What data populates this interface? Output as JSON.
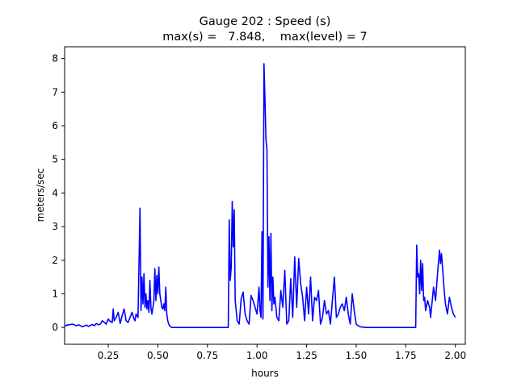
{
  "chart_data": {
    "type": "line",
    "title": "Gauge 202 : Speed (s)",
    "subtitle": "max(s) =   7.848,    max(level) = 7",
    "xlabel": "hours",
    "ylabel": "meters/sec",
    "xlim": [
      0.03,
      2.05
    ],
    "ylim": [
      -0.5,
      8.35
    ],
    "xticks": [
      0.25,
      0.5,
      0.75,
      1.0,
      1.25,
      1.5,
      1.75,
      2.0
    ],
    "xtick_labels": [
      "0.25",
      "0.50",
      "0.75",
      "1.00",
      "1.25",
      "1.50",
      "1.75",
      "2.00"
    ],
    "yticks": [
      0,
      1,
      2,
      3,
      4,
      5,
      6,
      7,
      8
    ],
    "ytick_labels": [
      "0",
      "1",
      "2",
      "3",
      "4",
      "5",
      "6",
      "7",
      "8"
    ],
    "grid": false,
    "series": [
      {
        "color": "#0000ff",
        "x": [
          0.03,
          0.05,
          0.07,
          0.09,
          0.1,
          0.12,
          0.14,
          0.15,
          0.17,
          0.18,
          0.19,
          0.2,
          0.21,
          0.22,
          0.23,
          0.24,
          0.25,
          0.26,
          0.27,
          0.275,
          0.28,
          0.29,
          0.3,
          0.31,
          0.32,
          0.33,
          0.34,
          0.35,
          0.36,
          0.37,
          0.38,
          0.385,
          0.39,
          0.4,
          0.41,
          0.415,
          0.42,
          0.425,
          0.43,
          0.435,
          0.44,
          0.445,
          0.45,
          0.455,
          0.46,
          0.465,
          0.47,
          0.475,
          0.48,
          0.485,
          0.49,
          0.495,
          0.5,
          0.505,
          0.51,
          0.515,
          0.52,
          0.525,
          0.53,
          0.535,
          0.54,
          0.545,
          0.55,
          0.555,
          0.56,
          0.565,
          0.57,
          0.58,
          0.59,
          0.6,
          0.65,
          0.7,
          0.75,
          0.8,
          0.855,
          0.86,
          0.865,
          0.87,
          0.875,
          0.88,
          0.885,
          0.89,
          0.9,
          0.91,
          0.92,
          0.93,
          0.94,
          0.95,
          0.96,
          0.97,
          0.98,
          0.99,
          1.0,
          1.01,
          1.015,
          1.02,
          1.025,
          1.03,
          1.035,
          1.04,
          1.045,
          1.05,
          1.055,
          1.06,
          1.065,
          1.07,
          1.075,
          1.08,
          1.085,
          1.09,
          1.1,
          1.11,
          1.12,
          1.13,
          1.14,
          1.15,
          1.16,
          1.17,
          1.18,
          1.19,
          1.2,
          1.21,
          1.22,
          1.23,
          1.24,
          1.25,
          1.26,
          1.27,
          1.28,
          1.29,
          1.3,
          1.31,
          1.32,
          1.33,
          1.34,
          1.35,
          1.36,
          1.37,
          1.38,
          1.39,
          1.4,
          1.41,
          1.42,
          1.43,
          1.44,
          1.45,
          1.46,
          1.47,
          1.48,
          1.49,
          1.5,
          1.51,
          1.52,
          1.55,
          1.6,
          1.65,
          1.7,
          1.75,
          1.8,
          1.805,
          1.81,
          1.815,
          1.82,
          1.825,
          1.83,
          1.835,
          1.84,
          1.845,
          1.85,
          1.86,
          1.87,
          1.875,
          1.88,
          1.89,
          1.9,
          1.91,
          1.92,
          1.925,
          1.93,
          1.935,
          1.94,
          1.945,
          1.95,
          1.96,
          1.97,
          1.98,
          1.99,
          2.0
        ],
        "y": [
          0.05,
          0.08,
          0.1,
          0.05,
          0.08,
          0.02,
          0.07,
          0.03,
          0.09,
          0.05,
          0.12,
          0.08,
          0.1,
          0.2,
          0.15,
          0.1,
          0.25,
          0.18,
          0.15,
          0.55,
          0.2,
          0.3,
          0.45,
          0.12,
          0.35,
          0.55,
          0.2,
          0.15,
          0.3,
          0.45,
          0.25,
          0.2,
          0.4,
          0.3,
          3.55,
          0.5,
          1.5,
          0.7,
          1.6,
          0.6,
          1.0,
          0.55,
          0.8,
          0.45,
          1.4,
          0.6,
          0.4,
          0.6,
          0.8,
          1.75,
          0.8,
          1.55,
          1.0,
          1.8,
          1.0,
          0.8,
          0.6,
          0.55,
          0.7,
          0.5,
          1.2,
          0.4,
          0.2,
          0.1,
          0.05,
          0.02,
          0.0,
          0.0,
          0.0,
          0.0,
          0.0,
          0.0,
          0.0,
          0.0,
          0.0,
          3.2,
          1.4,
          1.8,
          3.75,
          2.4,
          3.5,
          0.8,
          0.2,
          0.1,
          0.85,
          1.05,
          0.4,
          0.2,
          0.1,
          0.95,
          0.8,
          0.6,
          0.4,
          1.2,
          0.5,
          0.3,
          2.85,
          0.25,
          7.848,
          6.8,
          5.6,
          5.3,
          1.2,
          2.7,
          0.8,
          2.8,
          0.5,
          1.5,
          0.7,
          0.9,
          0.3,
          0.2,
          1.1,
          0.6,
          1.7,
          0.1,
          0.2,
          1.45,
          0.3,
          2.1,
          0.6,
          2.05,
          1.3,
          0.9,
          0.2,
          1.2,
          0.4,
          1.5,
          0.2,
          0.9,
          0.8,
          1.1,
          0.1,
          0.3,
          0.8,
          0.4,
          0.5,
          0.1,
          0.8,
          1.5,
          0.3,
          0.4,
          0.6,
          0.7,
          0.5,
          0.9,
          0.4,
          0.1,
          1.0,
          0.5,
          0.1,
          0.05,
          0.02,
          0.0,
          0.0,
          0.0,
          0.0,
          0.0,
          0.0,
          2.45,
          1.5,
          1.6,
          1.0,
          2.0,
          1.1,
          1.9,
          0.8,
          0.9,
          0.5,
          0.8,
          0.6,
          0.3,
          0.6,
          1.2,
          0.8,
          1.6,
          2.3,
          1.9,
          2.2,
          1.8,
          1.4,
          1.0,
          0.7,
          0.4,
          0.9,
          0.6,
          0.4,
          0.3
        ]
      }
    ]
  }
}
